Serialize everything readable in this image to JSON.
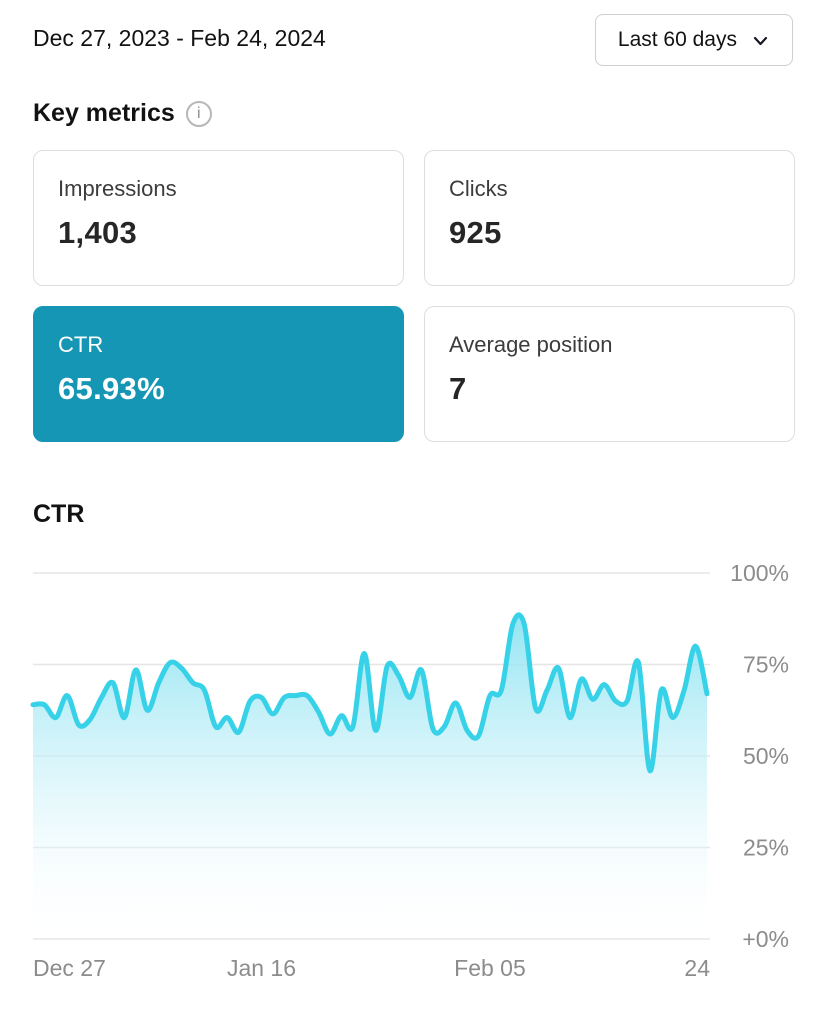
{
  "header": {
    "date_range": "Dec 27, 2023 - Feb 24, 2024",
    "range_selector_label": "Last 60 days"
  },
  "key_metrics": {
    "title": "Key metrics",
    "info_icon": "i",
    "selected_color": "#1596b5",
    "cards": [
      {
        "label": "Impressions",
        "value": "1,403",
        "selected": false
      },
      {
        "label": "Clicks",
        "value": "925",
        "selected": false
      },
      {
        "label": "CTR",
        "value": "65.93%",
        "selected": true
      },
      {
        "label": "Average position",
        "value": "7",
        "selected": false
      }
    ]
  },
  "chart_section": {
    "title": "CTR"
  },
  "chart_data": {
    "type": "area",
    "title": "CTR",
    "unit": "%",
    "ylim": [
      0,
      100
    ],
    "grid": true,
    "legend": "none",
    "y_axis_position": "right",
    "y_ticks": [
      {
        "value": 100,
        "label": "100%"
      },
      {
        "value": 75,
        "label": "75%"
      },
      {
        "value": 50,
        "label": "50%"
      },
      {
        "value": 25,
        "label": "25%"
      },
      {
        "value": 0,
        "label": "+0%"
      }
    ],
    "x_ticks": [
      {
        "day": 0,
        "label": "Dec 27"
      },
      {
        "day": 20,
        "label": "Jan 16"
      },
      {
        "day": 40,
        "label": "Feb 05"
      },
      {
        "day": 59,
        "label": "24"
      }
    ],
    "x_range_days": 60,
    "values": [
      64,
      64,
      60.5,
      66.5,
      58.5,
      60,
      66,
      70,
      60.5,
      73.5,
      62.5,
      70,
      75.5,
      74,
      70,
      68,
      58,
      60.5,
      56.5,
      65,
      66,
      61.5,
      66,
      66.5,
      66.5,
      62,
      56,
      61,
      58,
      78,
      57,
      74.5,
      72,
      66,
      73.5,
      57.5,
      58,
      64.5,
      57,
      55.5,
      66.5,
      68,
      86,
      86,
      63,
      68,
      74,
      60.5,
      71,
      65.5,
      69.5,
      65,
      65,
      75.5,
      46,
      68,
      60.5,
      68,
      80,
      67
    ],
    "colors": {
      "line": "#38d2e8",
      "fill_top": "rgba(128,224,241,0.85)",
      "fill_mid": "rgba(205,242,249,0.55)",
      "fill_bottom": "rgba(255,255,255,0.05)",
      "gridline": "#e6e6e6",
      "axis_label": "#8c8c8c"
    }
  }
}
